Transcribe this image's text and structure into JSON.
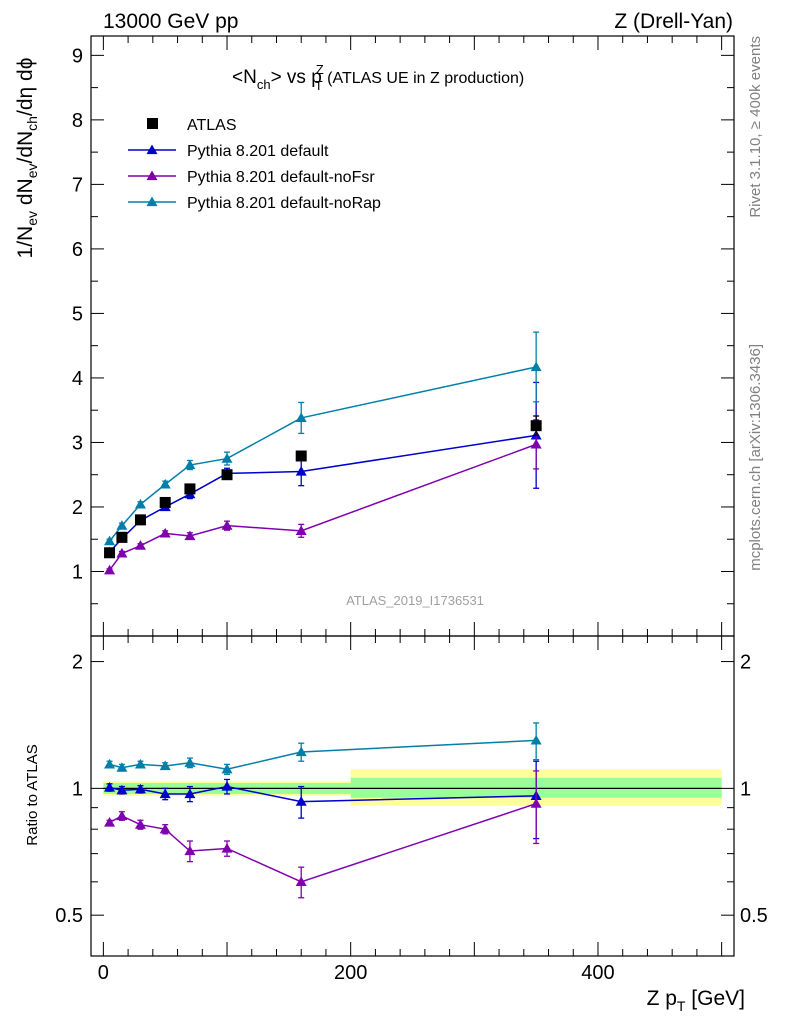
{
  "header": {
    "left": "13000 GeV pp",
    "right": "Z (Drell-Yan)"
  },
  "side": {
    "rivet": "Rivet 3.1.10, ≥ 400k events",
    "mcplots": "mcplots.cern.ch [arXiv:1306.3436]"
  },
  "main_plot": {
    "title_main": "<N",
    "title_sub": "ch",
    "title_mid": "> vs p",
    "title_sup": "Z",
    "title_sub2": "T",
    "title_rest": " (ATLAS UE in Z production)",
    "ylabel_parts": [
      "1/N",
      "ev",
      " dN",
      "ev",
      "/dN",
      "ch",
      "/dη dϕ"
    ],
    "watermark": "ATLAS_2019_I1736531"
  },
  "ratio_plot": {
    "ylabel": "Ratio to ATLAS"
  },
  "xaxis": {
    "label_main": "Z p",
    "label_sub": "T",
    "label_rest": " [GeV]"
  },
  "colors": {
    "data": "#000000",
    "default": "#0000cc",
    "noFsr": "#8000b0",
    "noRap": "#0080a8",
    "band_inner": "#99ff99",
    "band_outer": "#ffff99"
  },
  "chart_data": [
    {
      "type": "scatter",
      "xlim": [
        -10,
        510
      ],
      "ylim": [
        0,
        9.3
      ],
      "yticks": [
        1,
        2,
        3,
        4,
        5,
        6,
        7,
        8,
        9
      ],
      "x": [
        5,
        15,
        30,
        50,
        70,
        100,
        160,
        350
      ],
      "legend_placement": "top-left",
      "series": [
        {
          "name": "ATLAS",
          "marker": "square",
          "values": [
            1.29,
            1.53,
            1.8,
            2.07,
            2.28,
            2.5,
            2.79,
            3.26
          ],
          "errors": [
            0.05,
            0.05,
            0.05,
            0.06,
            0.06,
            0.07,
            0.07,
            0.15
          ]
        },
        {
          "name": "Pythia 8.201 default",
          "marker": "triangle",
          "values": [
            1.3,
            1.51,
            1.79,
            2.0,
            2.2,
            2.52,
            2.55,
            3.11
          ],
          "errors": [
            0.03,
            0.03,
            0.04,
            0.05,
            0.07,
            0.08,
            0.22,
            0.82
          ]
        },
        {
          "name": "Pythia 8.201 default-noFsr",
          "marker": "triangle",
          "values": [
            1.02,
            1.28,
            1.4,
            1.59,
            1.55,
            1.71,
            1.63,
            2.97
          ],
          "errors": [
            0.02,
            0.03,
            0.03,
            0.04,
            0.05,
            0.07,
            0.1,
            0.38
          ]
        },
        {
          "name": "Pythia 8.201 default-noRap",
          "marker": "triangle",
          "values": [
            1.47,
            1.71,
            2.04,
            2.35,
            2.65,
            2.75,
            3.38,
            4.17
          ],
          "errors": [
            0.03,
            0.04,
            0.04,
            0.05,
            0.07,
            0.1,
            0.24,
            0.54
          ]
        }
      ]
    },
    {
      "type": "scatter",
      "xlim": [
        -10,
        510
      ],
      "ylim": [
        0.4,
        2.3
      ],
      "yticks": [
        0.5,
        1,
        2
      ],
      "x": [
        5,
        15,
        30,
        50,
        70,
        100,
        160,
        350
      ],
      "xticks": [
        0,
        200,
        400
      ],
      "band_inner": [
        [
          0,
          200,
          0.97,
          1.03
        ],
        [
          200,
          500,
          0.95,
          1.06
        ]
      ],
      "band_outer": [
        [
          0,
          200,
          0.96,
          1.04
        ],
        [
          200,
          500,
          0.91,
          1.11
        ]
      ],
      "series": [
        {
          "name": "Pythia 8.201 default",
          "values": [
            1.005,
            0.99,
            0.995,
            0.97,
            0.97,
            1.01,
            0.93,
            0.96
          ],
          "errors": [
            0.02,
            0.02,
            0.02,
            0.03,
            0.04,
            0.04,
            0.08,
            0.2
          ]
        },
        {
          "name": "Pythia 8.201 default-noFsr",
          "values": [
            0.83,
            0.86,
            0.82,
            0.8,
            0.71,
            0.72,
            0.6,
            0.92
          ],
          "errors": [
            0.01,
            0.02,
            0.02,
            0.02,
            0.04,
            0.03,
            0.05,
            0.18
          ]
        },
        {
          "name": "Pythia 8.201 default-noRap",
          "values": [
            1.14,
            1.12,
            1.14,
            1.13,
            1.15,
            1.11,
            1.22,
            1.3
          ],
          "errors": [
            0.02,
            0.02,
            0.02,
            0.02,
            0.03,
            0.03,
            0.06,
            0.13
          ]
        }
      ]
    }
  ]
}
